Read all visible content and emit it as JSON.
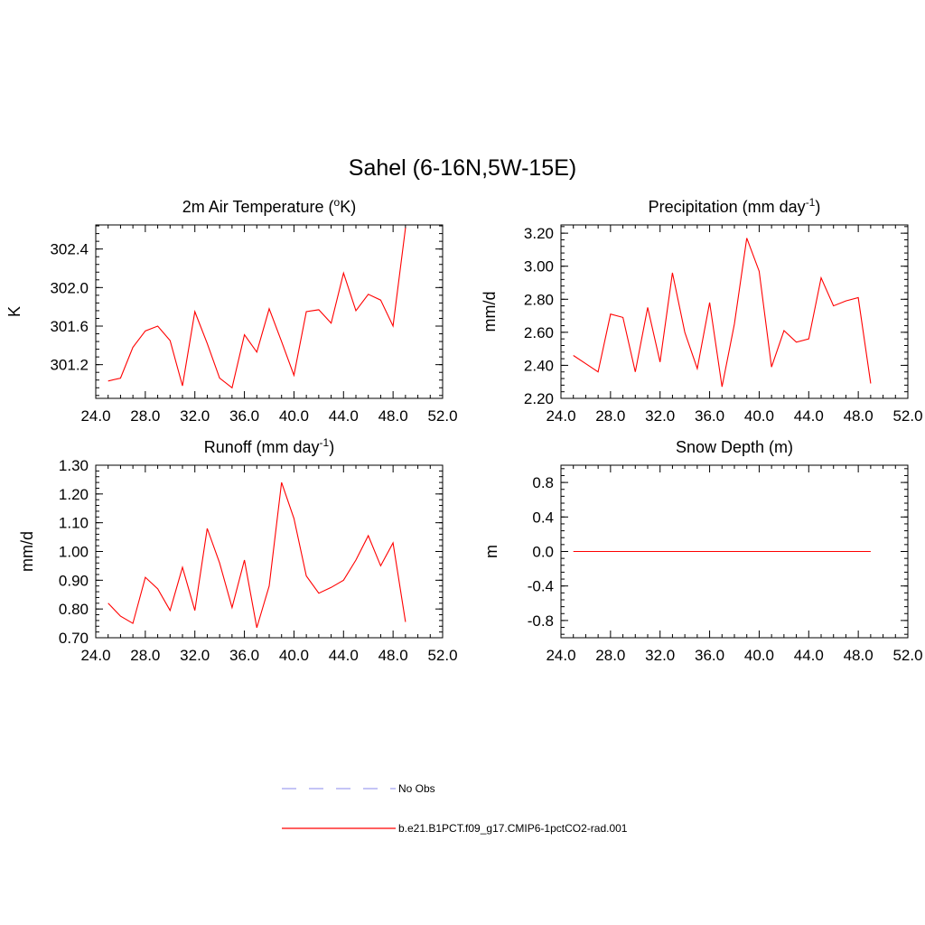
{
  "figure_title": "Sahel (6-16N,5W-15E)",
  "chart_data": [
    {
      "type": "line",
      "title_prefix": "2m Air Temperature (",
      "title_sup": "o",
      "title_suffix": "K)",
      "ylabel": "K",
      "xlim": [
        24,
        52
      ],
      "ylim": [
        300.85,
        302.65
      ],
      "x_ticks": [
        "24.0",
        "28.0",
        "32.0",
        "36.0",
        "40.0",
        "44.0",
        "48.0",
        "52.0"
      ],
      "y_ticks": [
        {
          "v": 301.2,
          "label": "301.2"
        },
        {
          "v": 301.6,
          "label": "301.6"
        },
        {
          "v": 302.0,
          "label": "302.0"
        },
        {
          "v": 302.4,
          "label": "302.4"
        }
      ],
      "y_minor_step": 0.08,
      "x": [
        25,
        26,
        27,
        28,
        29,
        30,
        31,
        32,
        33,
        34,
        35,
        36,
        37,
        38,
        39,
        40,
        41,
        42,
        43,
        44,
        45,
        46,
        47,
        48,
        49
      ],
      "values": [
        301.03,
        301.06,
        301.38,
        301.55,
        301.6,
        301.45,
        300.98,
        301.75,
        301.42,
        301.06,
        300.96,
        301.51,
        301.33,
        301.78,
        301.44,
        301.09,
        301.75,
        301.77,
        301.63,
        302.15,
        301.76,
        301.93,
        301.87,
        301.6,
        302.62
      ]
    },
    {
      "type": "line",
      "title_prefix": "Precipitation (mm day",
      "title_sup": "-1",
      "title_suffix": ")",
      "ylabel": "mm/d",
      "xlim": [
        24,
        52
      ],
      "ylim": [
        2.2,
        3.25
      ],
      "x_ticks": [
        "24.0",
        "28.0",
        "32.0",
        "36.0",
        "40.0",
        "44.0",
        "48.0",
        "52.0"
      ],
      "y_ticks": [
        {
          "v": 2.2,
          "label": "2.20"
        },
        {
          "v": 2.4,
          "label": "2.40"
        },
        {
          "v": 2.6,
          "label": "2.60"
        },
        {
          "v": 2.8,
          "label": "2.80"
        },
        {
          "v": 3.0,
          "label": "3.00"
        },
        {
          "v": 3.2,
          "label": "3.20"
        }
      ],
      "y_minor_step": 0.04,
      "x": [
        25,
        26,
        27,
        28,
        29,
        30,
        31,
        32,
        33,
        34,
        35,
        36,
        37,
        38,
        39,
        40,
        41,
        42,
        43,
        44,
        45,
        46,
        47,
        48,
        49
      ],
      "values": [
        2.46,
        2.41,
        2.36,
        2.71,
        2.69,
        2.36,
        2.75,
        2.42,
        2.96,
        2.6,
        2.38,
        2.78,
        2.27,
        2.65,
        3.17,
        2.97,
        2.39,
        2.61,
        2.54,
        2.56,
        2.93,
        2.76,
        2.79,
        2.81,
        2.29
      ]
    },
    {
      "type": "line",
      "title_prefix": "Runoff (mm day",
      "title_sup": "-1",
      "title_suffix": ")",
      "ylabel": "mm/d",
      "xlim": [
        24,
        52
      ],
      "ylim": [
        0.7,
        1.3
      ],
      "x_ticks": [
        "24.0",
        "28.0",
        "32.0",
        "36.0",
        "40.0",
        "44.0",
        "48.0",
        "52.0"
      ],
      "y_ticks": [
        {
          "v": 0.7,
          "label": "0.70"
        },
        {
          "v": 0.8,
          "label": "0.80"
        },
        {
          "v": 0.9,
          "label": "0.90"
        },
        {
          "v": 1.0,
          "label": "1.00"
        },
        {
          "v": 1.1,
          "label": "1.10"
        },
        {
          "v": 1.2,
          "label": "1.20"
        },
        {
          "v": 1.3,
          "label": "1.30"
        }
      ],
      "y_minor_step": 0.02,
      "x": [
        25,
        26,
        27,
        28,
        29,
        30,
        31,
        32,
        33,
        34,
        35,
        36,
        37,
        38,
        39,
        40,
        41,
        42,
        43,
        44,
        45,
        46,
        47,
        48,
        49
      ],
      "values": [
        0.82,
        0.775,
        0.75,
        0.91,
        0.87,
        0.795,
        0.945,
        0.795,
        1.08,
        0.96,
        0.805,
        0.97,
        0.735,
        0.88,
        1.24,
        1.115,
        0.915,
        0.855,
        0.875,
        0.9,
        0.97,
        1.055,
        0.95,
        1.03,
        0.755
      ]
    },
    {
      "type": "line",
      "title_prefix": "Snow Depth (m)",
      "title_sup": "",
      "title_suffix": "",
      "ylabel": "m",
      "xlim": [
        24,
        52
      ],
      "ylim": [
        -1.0,
        1.0
      ],
      "x_ticks": [
        "24.0",
        "28.0",
        "32.0",
        "36.0",
        "40.0",
        "44.0",
        "48.0",
        "52.0"
      ],
      "y_ticks": [
        {
          "v": -0.8,
          "label": "-0.8"
        },
        {
          "v": -0.4,
          "label": "-0.4"
        },
        {
          "v": 0.0,
          "label": "0.0"
        },
        {
          "v": 0.4,
          "label": "0.4"
        },
        {
          "v": 0.8,
          "label": "0.8"
        }
      ],
      "y_minor_step": 0.08,
      "x": [
        25,
        26,
        27,
        28,
        29,
        30,
        31,
        32,
        33,
        34,
        35,
        36,
        37,
        38,
        39,
        40,
        41,
        42,
        43,
        44,
        45,
        46,
        47,
        48,
        49
      ],
      "values": [
        0,
        0,
        0,
        0,
        0,
        0,
        0,
        0,
        0,
        0,
        0,
        0,
        0,
        0,
        0,
        0,
        0,
        0,
        0,
        0,
        0,
        0,
        0,
        0,
        0
      ]
    }
  ],
  "legend": [
    {
      "label": "No Obs",
      "color": "#a0a0f0",
      "dash": true
    },
    {
      "label": "b.e21.B1PCT.f09_g17.CMIP6-1pctCO2-rad.001",
      "color": "#ff0000",
      "dash": false
    }
  ],
  "series_color": "#ff0000"
}
